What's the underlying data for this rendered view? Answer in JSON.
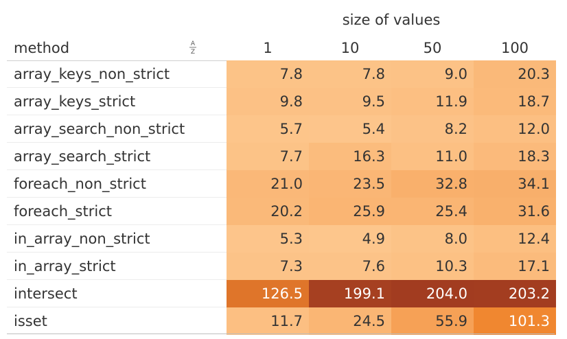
{
  "chart_data": {
    "type": "heatmap",
    "column_group_label": "size of values",
    "row_header": "method",
    "sort_icon": "sort-az-icon",
    "columns": [
      "1",
      "10",
      "50",
      "100"
    ],
    "rows": [
      {
        "method": "array_keys_non_strict",
        "values": [
          "7.8",
          "7.8",
          "9.0",
          "20.3"
        ]
      },
      {
        "method": "array_keys_strict",
        "values": [
          "9.8",
          "9.5",
          "11.9",
          "18.7"
        ]
      },
      {
        "method": "array_search_non_strict",
        "values": [
          "5.7",
          "5.4",
          "8.2",
          "12.0"
        ]
      },
      {
        "method": "array_search_strict",
        "values": [
          "7.7",
          "16.3",
          "11.0",
          "18.3"
        ]
      },
      {
        "method": "foreach_non_strict",
        "values": [
          "21.0",
          "23.5",
          "32.8",
          "34.1"
        ]
      },
      {
        "method": "foreach_strict",
        "values": [
          "20.2",
          "25.9",
          "25.4",
          "31.6"
        ]
      },
      {
        "method": "in_array_non_strict",
        "values": [
          "5.3",
          "4.9",
          "8.0",
          "12.4"
        ]
      },
      {
        "method": "in_array_strict",
        "values": [
          "7.3",
          "7.6",
          "10.3",
          "17.1"
        ]
      },
      {
        "method": "intersect",
        "values": [
          "126.5",
          "199.1",
          "204.0",
          "203.2"
        ]
      },
      {
        "method": "isset",
        "values": [
          "11.7",
          "24.5",
          "55.9",
          "101.3"
        ]
      }
    ],
    "color_scale": {
      "low_color": "#FDC68C",
      "mid_color": "#F0852D",
      "high_color": "#A23C20",
      "light_text_color": "#333333",
      "dark_text_color": "#ffffff"
    }
  }
}
